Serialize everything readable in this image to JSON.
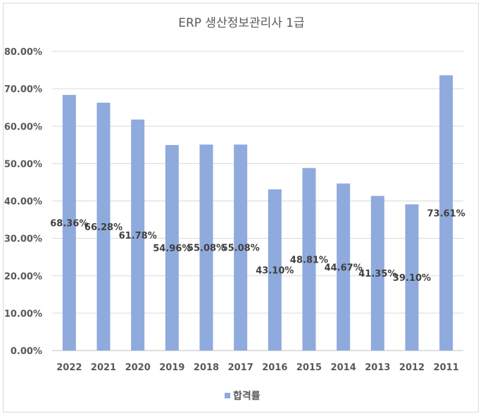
{
  "chart_data": {
    "type": "bar",
    "title": "ERP 생산정보관리사 1급",
    "categories": [
      "2022",
      "2021",
      "2020",
      "2019",
      "2018",
      "2017",
      "2016",
      "2015",
      "2014",
      "2013",
      "2012",
      "2011"
    ],
    "series": [
      {
        "name": "합격률",
        "values": [
          68.36,
          66.28,
          61.78,
          54.96,
          55.08,
          55.08,
          43.1,
          48.81,
          44.67,
          41.35,
          39.1,
          73.61
        ],
        "labels": [
          "68.36%",
          "66.28%",
          "61.78%",
          "54.96%",
          "55.08%",
          "55.08%",
          "43.10%",
          "48.81%",
          "44.67%",
          "41.35%",
          "39.10%",
          "73.61%"
        ],
        "color": "#8faadc"
      }
    ],
    "yticks": [
      "0.00%",
      "10.00%",
      "20.00%",
      "30.00%",
      "40.00%",
      "50.00%",
      "60.00%",
      "70.00%",
      "80.00%"
    ],
    "ylim": [
      0,
      80
    ],
    "xlabel": "",
    "ylabel": "",
    "grid": true,
    "legend": "bottom-center",
    "gridline_color": "#d9d9d9",
    "axis_color": "#bfbfbf"
  }
}
